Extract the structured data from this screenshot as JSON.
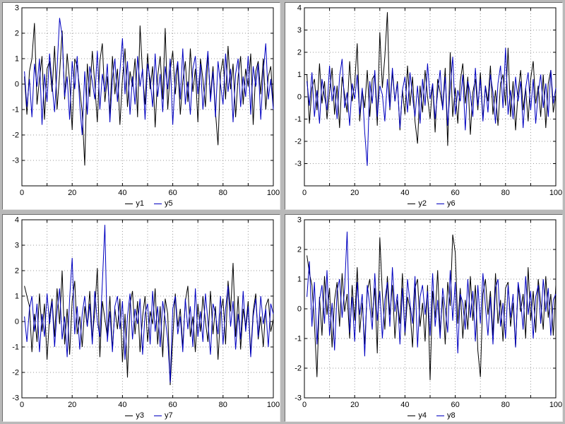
{
  "app": {
    "background_color": "#b9b9b9",
    "panel_border_color": "#6e6e6e",
    "grid_color": "#999999",
    "axis_color": "#000000"
  },
  "chart_data": [
    {
      "type": "line",
      "position": "top-left",
      "xlim": [
        0,
        100
      ],
      "ylim": [
        -4,
        3
      ],
      "xticks": [
        0,
        20,
        40,
        60,
        80,
        100
      ],
      "xgrid_step": 10,
      "yticks": [
        3,
        2,
        1,
        0,
        -1,
        -2,
        -3
      ],
      "x_range": [
        1,
        100
      ],
      "grid": true,
      "legend_position": "bottom-center",
      "series": [
        {
          "name": "y1",
          "color": "#000000",
          "values": [
            0.3,
            -1.2,
            0.5,
            1.0,
            2.4,
            -0.8,
            0.2,
            1.1,
            -1.4,
            0.6,
            0.9,
            -0.3,
            1.5,
            -1.0,
            0.4,
            2.1,
            -0.6,
            1.2,
            0.1,
            -1.8,
            1.0,
            0.7,
            -0.2,
            -1.1,
            -3.2,
            0.8,
            -0.5,
            1.3,
            0.0,
            -1.5,
            0.9,
            1.6,
            -0.7,
            0.3,
            -1.2,
            1.1,
            -0.4,
            0.6,
            -1.6,
            0.2,
            1.4,
            -0.9,
            0.5,
            -0.1,
            1.0,
            -1.3,
            2.3,
            0.4,
            -0.8,
            1.2,
            -0.2,
            0.7,
            -1.7,
            0.3,
            1.1,
            -0.6,
            2.2,
            -1.0,
            0.5,
            1.3,
            -0.4,
            0.8,
            -1.2,
            0.1,
            0.9,
            -0.7,
            1.4,
            -0.3,
            0.6,
            -1.5,
            1.0,
            0.2,
            -0.9,
            1.2,
            -0.5,
            0.7,
            -1.1,
            -2.4,
            0.4,
            1.0,
            -0.6,
            1.5,
            -0.2,
            0.8,
            -1.3,
            0.3,
            1.1,
            -0.8,
            0.6,
            -0.1,
            1.2,
            -1.6,
            0.5,
            0.9,
            -0.4,
            1.0,
            -1.0,
            0.3,
            0.7,
            -0.9
          ]
        },
        {
          "name": "y5",
          "color": "#0000c0",
          "values": [
            0.5,
            -0.9,
            0.2,
            -1.3,
            0.8,
            -0.1,
            1.0,
            -1.6,
            0.4,
            -0.7,
            1.2,
            0.0,
            -1.1,
            0.6,
            2.6,
            1.9,
            -0.5,
            0.3,
            -1.4,
            0.9,
            -0.2,
            1.1,
            -0.8,
            -2.0,
            0.5,
            -1.2,
            0.7,
            0.1,
            -0.6,
            1.3,
            -1.0,
            0.4,
            -0.3,
            0.8,
            -1.5,
            0.2,
            1.0,
            -0.7,
            0.5,
            1.8,
            -0.4,
            0.9,
            -1.2,
            0.3,
            -0.8,
            1.1,
            -0.1,
            0.6,
            -1.4,
            0.8,
            0.2,
            -0.9,
            1.2,
            -0.5,
            0.4,
            -1.1,
            0.7,
            -0.2,
            1.0,
            -1.6,
            0.3,
            0.9,
            -0.6,
            1.4,
            -0.8,
            0.1,
            -1.2,
            0.6,
            1.1,
            -0.4,
            0.8,
            -1.0,
            0.2,
            1.3,
            -0.7,
            0.5,
            -1.3,
            0.9,
            0.0,
            -0.8,
            1.2,
            -0.3,
            0.6,
            -1.5,
            0.4,
            1.0,
            -0.9,
            0.3,
            -0.5,
            1.1,
            -1.2,
            0.7,
            -0.1,
            0.8,
            -1.4,
            0.5,
            1.6,
            -0.6,
            0.2,
            -1.0
          ]
        }
      ]
    },
    {
      "type": "line",
      "position": "top-right",
      "xlim": [
        0,
        100
      ],
      "ylim": [
        -4,
        4
      ],
      "xticks": [
        0,
        20,
        40,
        60,
        80,
        100
      ],
      "xgrid_step": 10,
      "yticks": [
        4,
        3,
        2,
        1,
        0,
        -1,
        -2,
        -3
      ],
      "x_range": [
        1,
        100
      ],
      "grid": true,
      "legend_position": "bottom-center",
      "series": [
        {
          "name": "y2",
          "color": "#000000",
          "values": [
            1.0,
            -1.2,
            0.4,
            0.8,
            -0.6,
            1.5,
            -0.3,
            0.7,
            -1.0,
            0.2,
            1.3,
            -0.8,
            0.5,
            -1.4,
            0.9,
            0.1,
            -0.7,
            1.6,
            -0.2,
            0.6,
            2.4,
            -1.1,
            0.3,
            -0.5,
            1.2,
            -0.9,
            0.8,
            1.0,
            -1.3,
            2.9,
            0.4,
            1.8,
            3.8,
            -0.6,
            1.1,
            -0.2,
            0.7,
            -1.5,
            0.3,
            -0.8,
            1.4,
            -0.4,
            0.9,
            -1.1,
            -2.1,
            0.5,
            -0.7,
            1.2,
            0.0,
            -1.0,
            0.6,
            -1.6,
            0.8,
            0.2,
            -0.5,
            1.3,
            -2.2,
            2.0,
            -0.9,
            0.4,
            -1.2,
            0.7,
            1.5,
            -0.3,
            0.9,
            -1.7,
            0.2,
            0.8,
            -0.6,
            1.1,
            -1.0,
            0.5,
            -0.2,
            1.4,
            -0.8,
            0.3,
            -1.3,
            0.6,
            1.0,
            -0.4,
            2.2,
            -0.9,
            0.7,
            -1.5,
            0.2,
            1.2,
            -0.6,
            0.4,
            -1.1,
            0.8,
            1.6,
            -0.3,
            0.5,
            -0.9,
            1.0,
            -1.4,
            0.6,
            1.2,
            -0.7,
            0.1
          ]
        },
        {
          "name": "y6",
          "color": "#0000c0",
          "values": [
            0.7,
            -0.4,
            1.1,
            -0.9,
            0.3,
            -1.2,
            0.8,
            0.0,
            -0.6,
            1.4,
            -0.2,
            0.5,
            -1.0,
            0.9,
            1.7,
            -0.5,
            0.2,
            -1.3,
            0.6,
            -0.1,
            1.0,
            -0.8,
            0.4,
            -1.6,
            -3.1,
            0.7,
            -0.3,
            1.2,
            -0.9,
            0.5,
            0.1,
            -1.1,
            0.8,
            -0.5,
            1.3,
            -0.2,
            0.6,
            -1.4,
            0.3,
            0.9,
            -0.7,
            1.1,
            0.0,
            -0.9,
            0.5,
            -1.2,
            0.8,
            -0.4,
            1.5,
            -0.1,
            0.6,
            -1.0,
            0.2,
            1.2,
            -0.6,
            0.9,
            -1.3,
            0.4,
            1.8,
            -0.8,
            0.3,
            -0.2,
            1.0,
            -1.5,
            0.7,
            0.1,
            -0.9,
            1.3,
            -0.4,
            0.8,
            -1.1,
            0.5,
            -0.7,
            1.0,
            0.2,
            -1.2,
            0.6,
            1.4,
            -0.5,
            2.2,
            -0.8,
            0.3,
            -1.0,
            0.9,
            -0.2,
            0.7,
            -1.4,
            0.4,
            1.1,
            -0.6,
            0.8,
            -1.2,
            0.2,
            1.0,
            -0.5,
            0.6,
            -0.9,
            1.2,
            -0.3,
            0.4
          ]
        }
      ]
    },
    {
      "type": "line",
      "position": "bottom-left",
      "xlim": [
        0,
        100
      ],
      "ylim": [
        -3,
        4
      ],
      "xticks": [
        0,
        20,
        40,
        60,
        80,
        100
      ],
      "xgrid_step": 10,
      "yticks": [
        4,
        3,
        2,
        1,
        0,
        -1,
        -2,
        -3
      ],
      "x_range": [
        1,
        100
      ],
      "grid": true,
      "legend_position": "bottom-center",
      "series": [
        {
          "name": "y3",
          "color": "#000000",
          "values": [
            1.4,
            1.0,
            0.6,
            -1.2,
            0.3,
            -0.8,
            1.1,
            -0.4,
            0.7,
            -1.5,
            0.2,
            0.9,
            -0.6,
            1.3,
            -0.1,
            2.0,
            -0.9,
            0.5,
            -1.3,
            0.8,
            1.6,
            -0.5,
            0.2,
            -1.0,
            0.6,
            -0.2,
            1.2,
            -0.7,
            0.4,
            2.1,
            -1.4,
            0.8,
            0.1,
            -0.6,
            1.0,
            -1.1,
            0.5,
            -0.3,
            0.9,
            -1.6,
            0.3,
            -2.2,
            0.7,
            1.2,
            -0.5,
            0.8,
            -1.2,
            0.2,
            1.0,
            -0.8,
            0.4,
            -0.1,
            1.3,
            -0.9,
            0.6,
            -1.4,
            0.9,
            0.3,
            -2.5,
            -0.7,
            1.1,
            -0.2,
            0.5,
            -1.0,
            0.8,
            1.4,
            -0.6,
            0.2,
            -1.2,
            0.7,
            -0.4,
            1.0,
            0.0,
            -0.8,
            1.2,
            -0.5,
            0.6,
            -1.5,
            0.3,
            0.9,
            -0.9,
            1.6,
            0.4,
            2.3,
            -0.6,
            1.0,
            -1.1,
            0.5,
            -0.2,
            0.8,
            -1.3,
            0.4,
            1.1,
            -0.7,
            0.2,
            -1.0,
            0.6,
            0.9,
            -0.4,
            0.1
          ]
        },
        {
          "name": "y7",
          "color": "#0000c0",
          "values": [
            0.2,
            -0.8,
            0.5,
            1.0,
            -0.4,
            0.7,
            -1.2,
            0.3,
            -0.6,
            1.1,
            -0.1,
            0.8,
            -1.0,
            0.4,
            1.3,
            -0.7,
            0.2,
            -1.4,
            0.9,
            2.5,
            -0.5,
            0.6,
            -1.1,
            0.3,
            1.0,
            -0.2,
            0.7,
            -0.9,
            1.2,
            0.0,
            -0.6,
            1.5,
            3.8,
            -0.8,
            0.4,
            -1.2,
            0.6,
            1.0,
            -0.3,
            0.8,
            -1.5,
            0.2,
            1.1,
            -0.7,
            0.5,
            -0.1,
            0.9,
            -1.3,
            0.3,
            0.7,
            -0.9,
            1.2,
            -0.4,
            0.6,
            -1.0,
            0.8,
            0.1,
            -0.7,
            -2.4,
            0.5,
            1.0,
            -0.5,
            0.2,
            -1.2,
            0.9,
            -0.3,
            0.6,
            -1.0,
            1.3,
            -0.6,
            0.4,
            -0.8,
            1.1,
            0.0,
            -1.3,
            0.7,
            0.3,
            -0.5,
            1.0,
            -0.9,
            0.5,
            1.4,
            -0.2,
            0.8,
            -1.1,
            0.3,
            -0.7,
            1.2,
            -0.4,
            0.6,
            -1.4,
            0.2,
            0.9,
            -0.6,
            1.0,
            -0.1,
            0.5,
            -1.0,
            0.7,
            0.3
          ]
        }
      ]
    },
    {
      "type": "line",
      "position": "bottom-right",
      "xlim": [
        0,
        100
      ],
      "ylim": [
        -3,
        3
      ],
      "xticks": [
        0,
        20,
        40,
        60,
        80,
        100
      ],
      "xgrid_step": 10,
      "yticks": [
        3,
        2,
        1,
        0,
        -1,
        -2,
        -3
      ],
      "x_range": [
        1,
        100
      ],
      "grid": true,
      "legend_position": "bottom-center",
      "series": [
        {
          "name": "y4",
          "color": "#000000",
          "values": [
            1.8,
            1.2,
            0.8,
            -0.5,
            -2.3,
            0.4,
            -0.9,
            1.1,
            -0.2,
            0.7,
            -1.3,
            0.3,
            0.9,
            -0.6,
            1.2,
            -0.1,
            0.5,
            -1.0,
            0.8,
            -0.4,
            1.4,
            -0.8,
            0.2,
            -1.2,
            0.6,
            1.0,
            -0.3,
            0.7,
            -1.5,
            2.4,
            0.5,
            -0.7,
            1.1,
            -0.2,
            0.8,
            -1.0,
            0.3,
            -0.5,
            1.2,
            -0.9,
            0.4,
            0.0,
            -1.3,
            0.7,
            1.0,
            -0.6,
            0.2,
            -1.1,
            0.8,
            -2.4,
            0.6,
            -0.3,
            1.3,
            -0.8,
            0.4,
            -1.2,
            0.9,
            0.1,
            2.5,
            1.9,
            -0.5,
            0.7,
            -1.0,
            0.3,
            -0.7,
            1.1,
            -0.4,
            0.8,
            -1.4,
            -2.3,
            0.5,
            1.0,
            -0.2,
            0.6,
            -0.9,
            1.2,
            -0.5,
            0.3,
            -1.1,
            0.7,
            0.9,
            -0.6,
            0.2,
            -1.3,
            0.8,
            -0.1,
            0.5,
            -1.0,
            1.4,
            -0.4,
            0.6,
            -0.8,
            1.0,
            0.2,
            -0.7,
            1.1,
            -0.3,
            0.5,
            -0.9,
            0.8
          ]
        },
        {
          "name": "y8",
          "color": "#0000c0",
          "values": [
            0.4,
            1.6,
            -0.6,
            0.9,
            -1.2,
            0.3,
            0.8,
            -0.5,
            1.3,
            -0.9,
            0.2,
            -1.4,
            0.6,
            1.0,
            -0.3,
            0.7,
            2.6,
            -0.8,
            0.4,
            -1.1,
            0.9,
            -0.2,
            0.5,
            -1.6,
            0.8,
            0.1,
            -0.7,
            1.2,
            -0.4,
            0.6,
            -1.0,
            0.3,
            0.9,
            -0.6,
            1.4,
            -0.1,
            0.5,
            -1.2,
            0.7,
            -0.8,
            1.0,
            0.2,
            -0.5,
            1.1,
            -1.3,
            0.4,
            0.8,
            -0.2,
            0.6,
            -0.9,
            1.2,
            -0.6,
            0.3,
            -1.0,
            0.7,
            0.0,
            -0.8,
            1.3,
            -0.4,
            0.9,
            -1.5,
            0.5,
            0.2,
            -0.7,
            1.0,
            -0.3,
            0.6,
            -1.1,
            0.8,
            -0.5,
            1.2,
            0.1,
            -0.9,
            0.4,
            -1.2,
            0.7,
            1.0,
            -0.6,
            0.2,
            -1.0,
            0.8,
            -0.3,
            0.5,
            -1.3,
            0.9,
            0.3,
            -0.7,
            1.1,
            -0.2,
            0.6,
            -1.0,
            0.4,
            0.8,
            -0.5,
            1.0,
            -0.1,
            0.7,
            -0.9,
            0.3,
            0.5
          ]
        }
      ]
    }
  ]
}
